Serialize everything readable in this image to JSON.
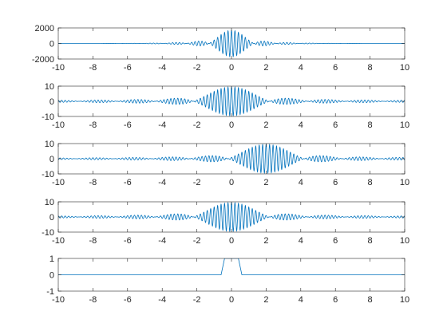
{
  "figure": {
    "background": "#ffffff"
  },
  "chart_data": [
    {
      "type": "line",
      "title": "",
      "xlabel": "",
      "ylabel": "",
      "xlim": [
        -10,
        10
      ],
      "ylim": [
        -2000,
        2000
      ],
      "xticks": [
        -10,
        -8,
        -6,
        -4,
        -2,
        0,
        2,
        4,
        6,
        8,
        10
      ],
      "xtick_labels": [
        "-10",
        "-8",
        "-6",
        "-4",
        "-2",
        "0",
        "2",
        "4",
        "6",
        "8",
        "10"
      ],
      "yticks": [
        -2000,
        0,
        2000
      ],
      "ytick_labels": [
        "-2000",
        "0",
        "2000"
      ],
      "grid": false,
      "series": [
        {
          "color": "#0072BD",
          "amplitude": 1700,
          "center": 0,
          "sinc_period": 1.3,
          "carrier_freq": 5,
          "decay": 1
        }
      ]
    },
    {
      "type": "line",
      "title": "",
      "xlabel": "",
      "ylabel": "",
      "xlim": [
        -10,
        10
      ],
      "ylim": [
        -10,
        10
      ],
      "xticks": [
        -10,
        -8,
        -6,
        -4,
        -2,
        0,
        2,
        4,
        6,
        8,
        10
      ],
      "xtick_labels": [
        "-10",
        "-8",
        "-6",
        "-4",
        "-2",
        "0",
        "2",
        "4",
        "6",
        "8",
        "10"
      ],
      "yticks": [
        -10,
        0,
        10
      ],
      "ytick_labels": [
        "-10",
        "0",
        "10"
      ],
      "grid": false,
      "series": [
        {
          "color": "#0072BD",
          "amplitude": 9.5,
          "center": 0,
          "sinc_period": 2.2,
          "carrier_freq": 5,
          "decay": 0
        }
      ]
    },
    {
      "type": "line",
      "title": "",
      "xlabel": "",
      "ylabel": "",
      "xlim": [
        -10,
        10
      ],
      "ylim": [
        -10,
        10
      ],
      "xticks": [
        -10,
        -8,
        -6,
        -4,
        -2,
        0,
        2,
        4,
        6,
        8,
        10
      ],
      "xtick_labels": [
        "-10",
        "-8",
        "-6",
        "-4",
        "-2",
        "0",
        "2",
        "4",
        "6",
        "8",
        "10"
      ],
      "yticks": [
        -10,
        0,
        10
      ],
      "ytick_labels": [
        "-10",
        "0",
        "10"
      ],
      "grid": false,
      "series": [
        {
          "color": "#0072BD",
          "amplitude": 9.5,
          "center": 2,
          "sinc_period": 2.2,
          "carrier_freq": 5,
          "decay": 0
        }
      ]
    },
    {
      "type": "line",
      "title": "",
      "xlabel": "",
      "ylabel": "",
      "xlim": [
        -10,
        10
      ],
      "ylim": [
        -10,
        10
      ],
      "xticks": [
        -10,
        -8,
        -6,
        -4,
        -2,
        0,
        2,
        4,
        6,
        8,
        10
      ],
      "xtick_labels": [
        "-10",
        "-8",
        "-6",
        "-4",
        "-2",
        "0",
        "2",
        "4",
        "6",
        "8",
        "10"
      ],
      "yticks": [
        -10,
        0,
        10
      ],
      "ytick_labels": [
        "-10",
        "0",
        "10"
      ],
      "grid": false,
      "series": [
        {
          "color": "#0072BD",
          "amplitude": 9.5,
          "center": 0,
          "sinc_period": 2.2,
          "carrier_freq": 5,
          "decay": 0
        }
      ]
    },
    {
      "type": "line",
      "title": "",
      "xlabel": "",
      "ylabel": "",
      "xlim": [
        -10,
        10
      ],
      "ylim": [
        -1,
        1
      ],
      "xticks": [
        -10,
        -8,
        -6,
        -4,
        -2,
        0,
        2,
        4,
        6,
        8,
        10
      ],
      "xtick_labels": [
        "-10",
        "-8",
        "-6",
        "-4",
        "-2",
        "0",
        "2",
        "4",
        "6",
        "8",
        "10"
      ],
      "yticks": [
        -1,
        0,
        1
      ],
      "ytick_labels": [
        "-1",
        "0",
        "1"
      ],
      "grid": false,
      "series": [
        {
          "color": "#0072BD",
          "x": [
            -10,
            -0.6,
            -0.4,
            0.4,
            0.6,
            10
          ],
          "y": [
            0,
            0,
            1,
            1,
            0,
            0
          ]
        }
      ]
    }
  ]
}
